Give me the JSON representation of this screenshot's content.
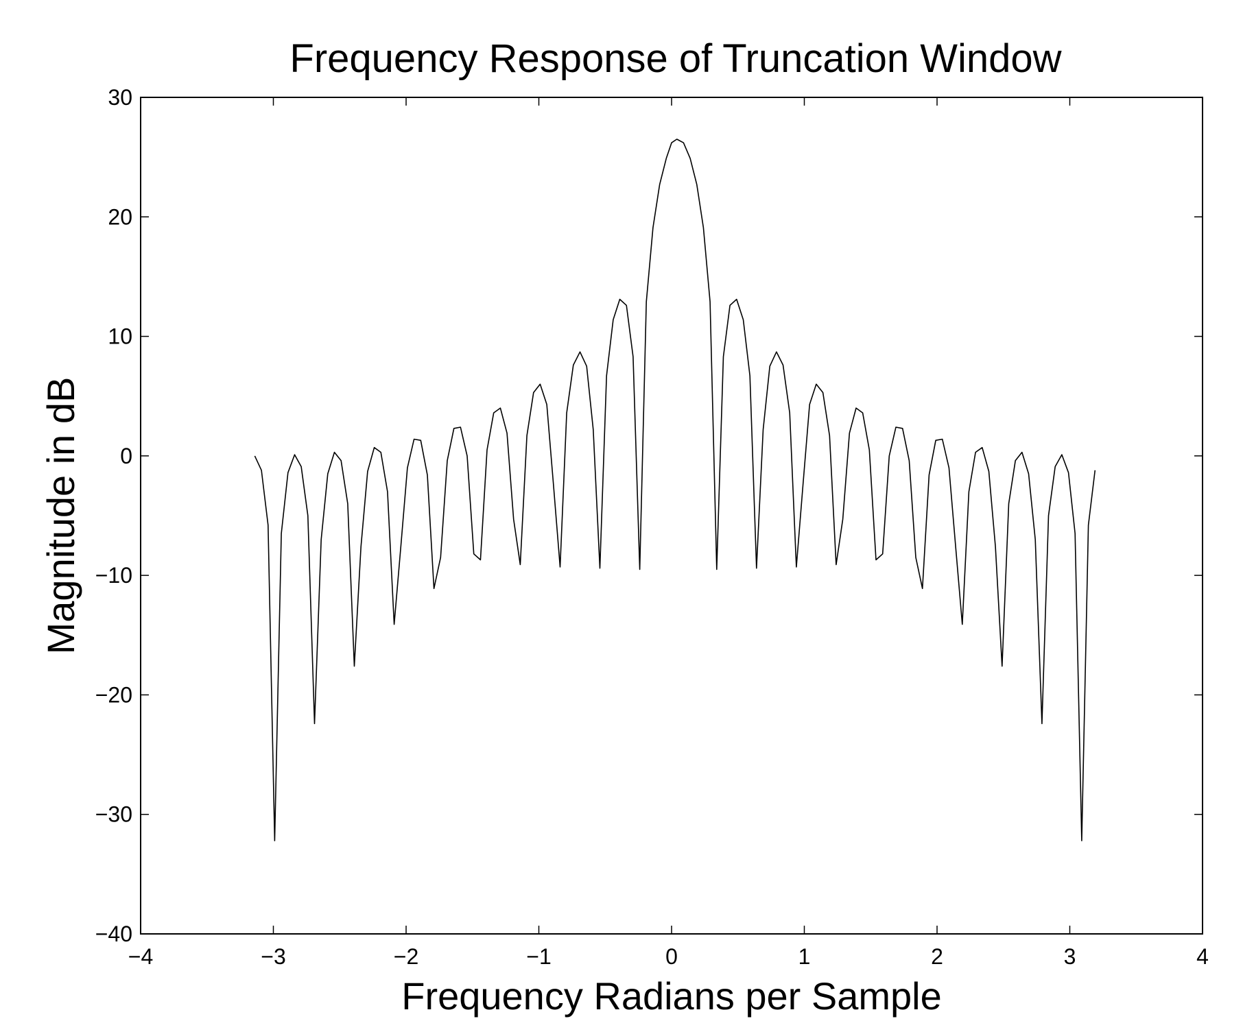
{
  "chart_data": {
    "type": "line",
    "title": "Frequency Response of Truncation Window",
    "xlabel": "Frequency Radians per Sample",
    "ylabel": "Magnitude in dB",
    "xlim": [
      -4,
      4
    ],
    "ylim": [
      -40,
      30
    ],
    "grid": false,
    "x_ticks": [
      -4,
      -3,
      -2,
      -1,
      0,
      1,
      2,
      3,
      4
    ],
    "x_tick_labels": [
      "−4",
      "−3",
      "−2",
      "−1",
      "0",
      "1",
      "2",
      "3",
      "4"
    ],
    "y_ticks": [
      -40,
      -30,
      -20,
      -10,
      0,
      10,
      20,
      30
    ],
    "y_tick_labels": [
      "−40",
      "−30",
      "−20",
      "−10",
      "0",
      "10",
      "20",
      "30"
    ],
    "series": [
      {
        "color": "#000000",
        "points": [
          [
            -3.14,
            0.0
          ],
          [
            -3.09,
            -1.2
          ],
          [
            -3.04,
            -5.8
          ],
          [
            -2.99,
            -32.2
          ],
          [
            -2.94,
            -6.5
          ],
          [
            -2.89,
            -1.4
          ],
          [
            -2.84,
            0.1
          ],
          [
            -2.79,
            -0.9
          ],
          [
            -2.74,
            -5.0
          ],
          [
            -2.69,
            -22.4
          ],
          [
            -2.64,
            -7.0
          ],
          [
            -2.59,
            -1.5
          ],
          [
            -2.54,
            0.3
          ],
          [
            -2.49,
            -0.4
          ],
          [
            -2.44,
            -4.0
          ],
          [
            -2.39,
            -17.6
          ],
          [
            -2.34,
            -7.6
          ],
          [
            -2.29,
            -1.3
          ],
          [
            -2.24,
            0.7
          ],
          [
            -2.19,
            0.3
          ],
          [
            -2.14,
            -3.0
          ],
          [
            -2.09,
            -14.1
          ],
          [
            -2.04,
            -7.6
          ],
          [
            -1.99,
            -1.0
          ],
          [
            -1.94,
            1.4
          ],
          [
            -1.89,
            1.3
          ],
          [
            -1.84,
            -1.6
          ],
          [
            -1.79,
            -11.1
          ],
          [
            -1.74,
            -8.5
          ],
          [
            -1.69,
            -0.4
          ],
          [
            -1.64,
            2.3
          ],
          [
            -1.59,
            2.4
          ],
          [
            -1.54,
            0.0
          ],
          [
            -1.49,
            -8.2
          ],
          [
            -1.44,
            -8.7
          ],
          [
            -1.39,
            0.5
          ],
          [
            -1.34,
            3.6
          ],
          [
            -1.29,
            4.0
          ],
          [
            -1.24,
            1.9
          ],
          [
            -1.19,
            -5.3
          ],
          [
            -1.14,
            -9.1
          ],
          [
            -1.09,
            1.7
          ],
          [
            -1.04,
            5.3
          ],
          [
            -0.99,
            6.0
          ],
          [
            -0.94,
            4.3
          ],
          [
            -0.89,
            -2.4
          ],
          [
            -0.84,
            -9.3
          ],
          [
            -0.79,
            3.6
          ],
          [
            -0.74,
            7.6
          ],
          [
            -0.69,
            8.7
          ],
          [
            -0.64,
            7.5
          ],
          [
            -0.59,
            2.2
          ],
          [
            -0.54,
            -9.4
          ],
          [
            -0.49,
            6.7
          ],
          [
            -0.44,
            11.4
          ],
          [
            -0.39,
            13.1
          ],
          [
            -0.34,
            12.6
          ],
          [
            -0.29,
            8.3
          ],
          [
            -0.24,
            -9.5
          ],
          [
            -0.19,
            12.9
          ],
          [
            -0.14,
            19.1
          ],
          [
            -0.09,
            22.7
          ],
          [
            -0.04,
            24.9
          ],
          [
            0.0,
            26.2
          ],
          [
            0.04,
            26.5
          ],
          [
            0.09,
            26.2
          ],
          [
            0.14,
            24.9
          ],
          [
            0.19,
            22.7
          ],
          [
            0.24,
            19.1
          ],
          [
            0.29,
            12.9
          ],
          [
            0.34,
            -9.5
          ],
          [
            0.39,
            8.3
          ],
          [
            0.44,
            12.6
          ],
          [
            0.49,
            13.1
          ],
          [
            0.54,
            11.4
          ],
          [
            0.59,
            6.7
          ],
          [
            0.64,
            -9.4
          ],
          [
            0.69,
            2.2
          ],
          [
            0.74,
            7.5
          ],
          [
            0.79,
            8.7
          ],
          [
            0.84,
            7.6
          ],
          [
            0.89,
            3.6
          ],
          [
            0.94,
            -9.3
          ],
          [
            0.99,
            -2.4
          ],
          [
            1.04,
            4.3
          ],
          [
            1.09,
            6.0
          ],
          [
            1.14,
            5.3
          ],
          [
            1.19,
            1.7
          ],
          [
            1.24,
            -9.1
          ],
          [
            1.29,
            -5.3
          ],
          [
            1.34,
            1.9
          ],
          [
            1.39,
            4.0
          ],
          [
            1.44,
            3.6
          ],
          [
            1.49,
            0.5
          ],
          [
            1.54,
            -8.7
          ],
          [
            1.59,
            -8.2
          ],
          [
            1.64,
            0.0
          ],
          [
            1.69,
            2.4
          ],
          [
            1.74,
            2.3
          ],
          [
            1.79,
            -0.4
          ],
          [
            1.84,
            -8.5
          ],
          [
            1.89,
            -11.1
          ],
          [
            1.94,
            -1.6
          ],
          [
            1.99,
            1.3
          ],
          [
            2.04,
            1.4
          ],
          [
            2.09,
            -1.0
          ],
          [
            2.14,
            -7.6
          ],
          [
            2.19,
            -14.1
          ],
          [
            2.24,
            -3.0
          ],
          [
            2.29,
            0.3
          ],
          [
            2.34,
            0.7
          ],
          [
            2.39,
            -1.3
          ],
          [
            2.44,
            -7.6
          ],
          [
            2.49,
            -17.6
          ],
          [
            2.54,
            -4.0
          ],
          [
            2.59,
            -0.4
          ],
          [
            2.64,
            0.3
          ],
          [
            2.69,
            -1.5
          ],
          [
            2.74,
            -7.0
          ],
          [
            2.79,
            -22.4
          ],
          [
            2.84,
            -5.0
          ],
          [
            2.89,
            -0.9
          ],
          [
            2.94,
            0.1
          ],
          [
            2.99,
            -1.4
          ],
          [
            3.04,
            -6.5
          ],
          [
            3.09,
            -32.2
          ],
          [
            3.14,
            -5.8
          ],
          [
            3.19,
            -1.2
          ]
        ]
      }
    ]
  }
}
